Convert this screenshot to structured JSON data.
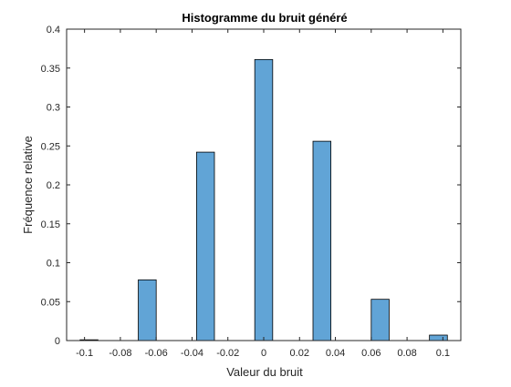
{
  "chart_data": {
    "type": "bar",
    "title": "Histogramme du bruit généré",
    "xlabel": "Valeur du bruit",
    "ylabel": "Fréquence relative",
    "xlim": [
      -0.11,
      0.11
    ],
    "ylim": [
      0,
      0.4
    ],
    "grid": false,
    "bar_color": "#61a4d6",
    "bar_edge_color": "#000000",
    "bin_width": 0.01,
    "x_ticks": [
      {
        "value": -0.1,
        "label": "-0.1"
      },
      {
        "value": -0.08,
        "label": "-0.08"
      },
      {
        "value": -0.06,
        "label": "-0.06"
      },
      {
        "value": -0.04,
        "label": "-0.04"
      },
      {
        "value": -0.02,
        "label": "-0.02"
      },
      {
        "value": 0,
        "label": "0"
      },
      {
        "value": 0.02,
        "label": "0.02"
      },
      {
        "value": 0.04,
        "label": "0.04"
      },
      {
        "value": 0.06,
        "label": "0.06"
      },
      {
        "value": 0.08,
        "label": "0.08"
      },
      {
        "value": 0.1,
        "label": "0.1"
      }
    ],
    "y_ticks": [
      {
        "value": 0,
        "label": "0"
      },
      {
        "value": 0.05,
        "label": "0.05"
      },
      {
        "value": 0.1,
        "label": "0.1"
      },
      {
        "value": 0.15,
        "label": "0.15"
      },
      {
        "value": 0.2,
        "label": "0.2"
      },
      {
        "value": 0.25,
        "label": "0.25"
      },
      {
        "value": 0.3,
        "label": "0.3"
      },
      {
        "value": 0.35,
        "label": "0.35"
      },
      {
        "value": 0.4,
        "label": "0.4"
      }
    ],
    "bins": [
      {
        "center": -0.0975,
        "value": 0.001
      },
      {
        "center": -0.065,
        "value": 0.078
      },
      {
        "center": -0.0325,
        "value": 0.242
      },
      {
        "center": 0.0,
        "value": 0.361
      },
      {
        "center": 0.0325,
        "value": 0.256
      },
      {
        "center": 0.065,
        "value": 0.053
      },
      {
        "center": 0.0975,
        "value": 0.007
      }
    ]
  }
}
